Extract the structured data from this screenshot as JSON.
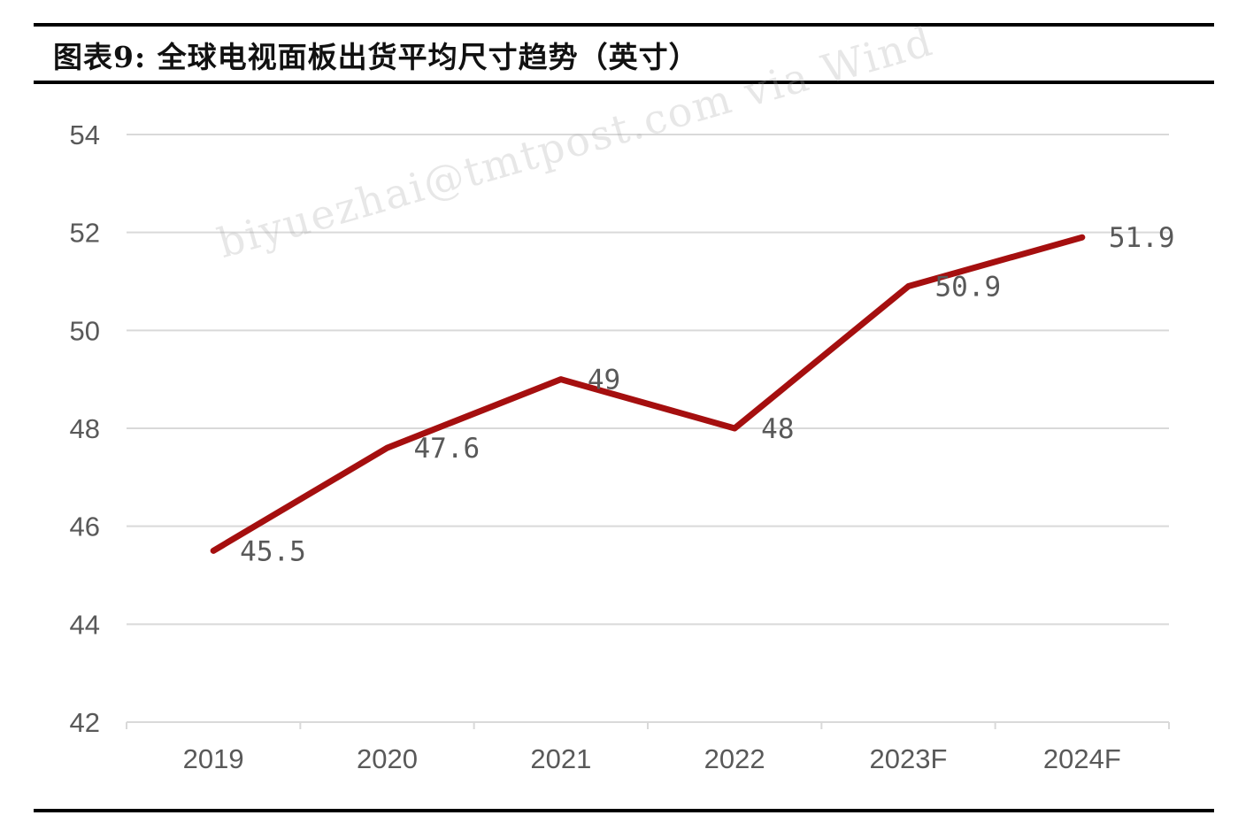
{
  "header": {
    "title": "图表9:  全球电视面板出货平均尺寸趋势（英寸）"
  },
  "watermark": "biyuezhai@tmtpost.com via Wind",
  "colors": {
    "line": "#A50F0F",
    "grid": "#D9D9D9",
    "axis_text": "#595959"
  },
  "chart_data": {
    "type": "line",
    "title": "图表9:  全球电视面板出货平均尺寸趋势（英寸）",
    "xlabel": "",
    "ylabel": "",
    "categories": [
      "2019",
      "2020",
      "2021",
      "2022",
      "2023F",
      "2024F"
    ],
    "series": [
      {
        "values": [
          45.5,
          47.6,
          49,
          48,
          50.9,
          51.9
        ],
        "labels": [
          "45.5",
          "47.6",
          "49",
          "48",
          "50.9",
          "51.9"
        ]
      }
    ],
    "ylim": [
      42,
      54
    ],
    "yticks": [
      42,
      44,
      46,
      48,
      50,
      52,
      54
    ],
    "grid": true,
    "legend": "none"
  }
}
